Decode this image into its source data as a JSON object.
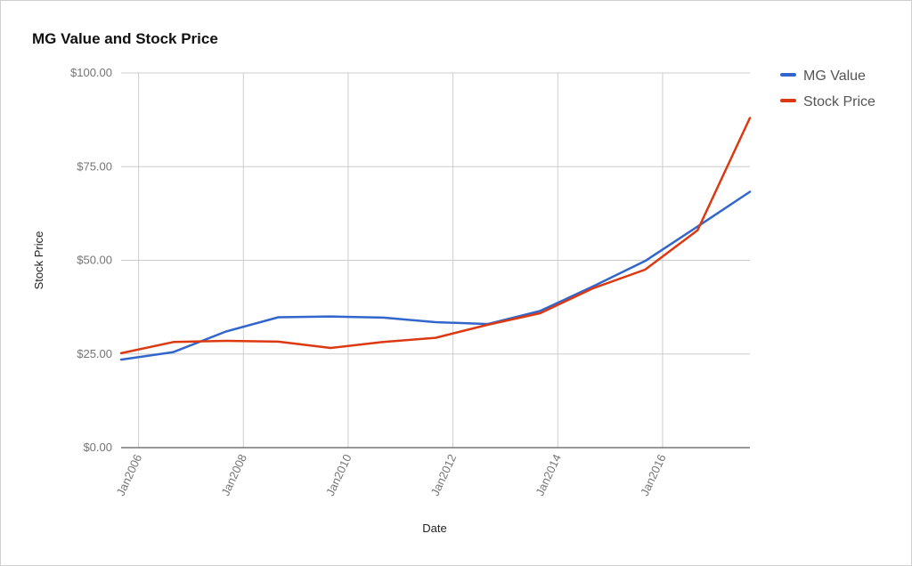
{
  "chart_data": {
    "type": "line",
    "title": "MG Value and Stock Price",
    "xlabel": "Date",
    "ylabel": "Stock Price",
    "ylim": [
      0,
      100
    ],
    "yticks": [
      "$0.00",
      "$25.00",
      "$50.00",
      "$75.00",
      "$100.00"
    ],
    "ytick_values": [
      0,
      25,
      50,
      75,
      100
    ],
    "xlim": [
      "2005-09",
      "2017-09"
    ],
    "xticks": [
      "Jan2006",
      "Jan2008",
      "Jan2010",
      "Jan2012",
      "Jan2014",
      "Jan2016"
    ],
    "xtick_values": [
      "2006-01",
      "2008-01",
      "2010-01",
      "2012-01",
      "2014-01",
      "2016-01"
    ],
    "grid": true,
    "legend_position": "right",
    "series": [
      {
        "name": "MG Value",
        "color": "#3366cc",
        "points": [
          {
            "x": "2005-09",
            "y": 23.5
          },
          {
            "x": "2006-09",
            "y": 25.5
          },
          {
            "x": "2007-09",
            "y": 31
          },
          {
            "x": "2008-09",
            "y": 34.8
          },
          {
            "x": "2009-09",
            "y": 35
          },
          {
            "x": "2010-09",
            "y": 34.7
          },
          {
            "x": "2011-09",
            "y": 33.5
          },
          {
            "x": "2012-09",
            "y": 33
          },
          {
            "x": "2013-09",
            "y": 36.5
          },
          {
            "x": "2014-09",
            "y": 43
          },
          {
            "x": "2015-09",
            "y": 49.8
          },
          {
            "x": "2016-09",
            "y": 59
          },
          {
            "x": "2017-09",
            "y": 68.3
          }
        ]
      },
      {
        "name": "Stock Price",
        "color": "#dc3912",
        "points": [
          {
            "x": "2005-09",
            "y": 25.2
          },
          {
            "x": "2006-09",
            "y": 28.2
          },
          {
            "x": "2007-09",
            "y": 28.5
          },
          {
            "x": "2008-09",
            "y": 28.3
          },
          {
            "x": "2009-09",
            "y": 26.6
          },
          {
            "x": "2010-09",
            "y": 28.2
          },
          {
            "x": "2011-09",
            "y": 29.3
          },
          {
            "x": "2012-09",
            "y": 32.8
          },
          {
            "x": "2013-09",
            "y": 35.9
          },
          {
            "x": "2014-09",
            "y": 42.5
          },
          {
            "x": "2015-09",
            "y": 47.5
          },
          {
            "x": "2016-09",
            "y": 58
          },
          {
            "x": "2017-09",
            "y": 88
          }
        ]
      }
    ]
  }
}
